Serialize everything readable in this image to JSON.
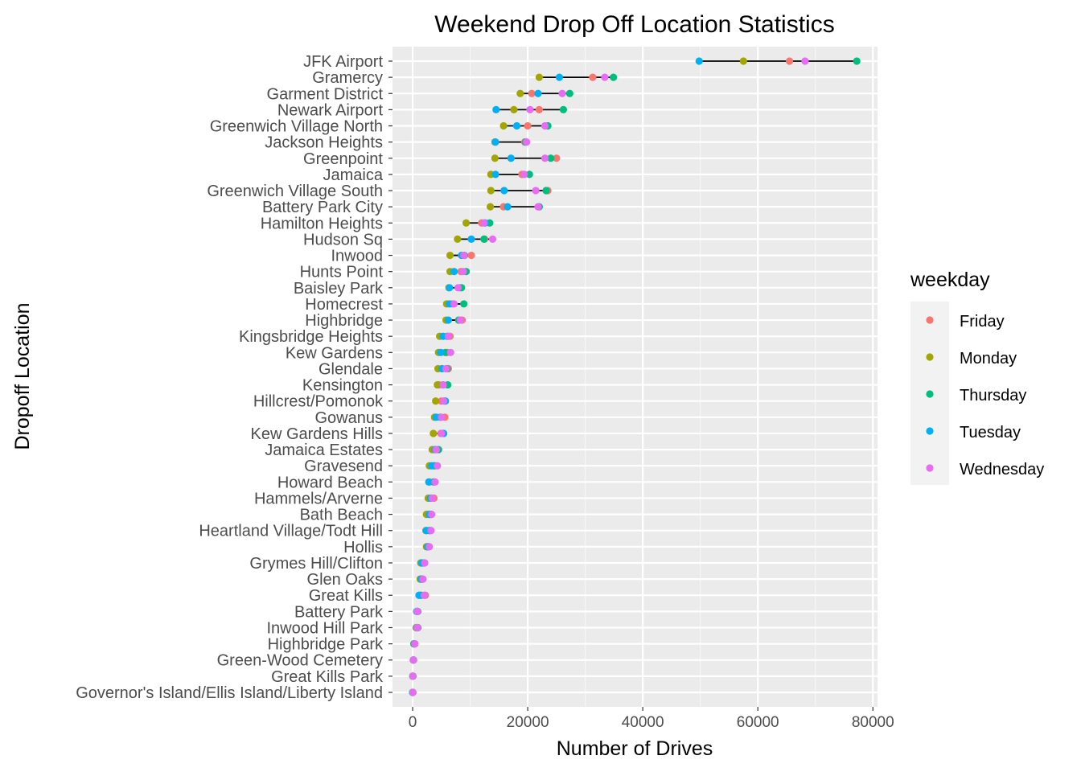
{
  "chart_data": {
    "type": "scatter",
    "title": "Weekend Drop Off Location Statistics",
    "xlabel": "Number of Drives",
    "ylabel": "Dropoff Location",
    "xlim": [
      -3500,
      80800
    ],
    "xticks": [
      0,
      20000,
      40000,
      60000,
      80000
    ],
    "xtick_labels": [
      "0",
      "20000",
      "40000",
      "60000",
      "80000"
    ],
    "grid": true,
    "legend": {
      "title": "weekday",
      "position": "right"
    },
    "categories": [
      "JFK Airport",
      "Gramercy",
      "Garment District",
      "Newark Airport",
      "Greenwich Village North",
      "Jackson Heights",
      "Greenpoint",
      "Jamaica",
      "Greenwich Village South",
      "Battery Park City",
      "Hamilton Heights",
      "Hudson Sq",
      "Inwood",
      "Hunts Point",
      "Baisley Park",
      "Homecrest",
      "Highbridge",
      "Kingsbridge Heights",
      "Kew Gardens",
      "Glendale",
      "Kensington",
      "Hillcrest/Pomonok",
      "Gowanus",
      "Kew Gardens Hills",
      "Jamaica Estates",
      "Gravesend",
      "Howard Beach",
      "Hammels/Arverne",
      "Bath Beach",
      "Heartland Village/Todt Hill",
      "Hollis",
      "Grymes Hill/Clifton",
      "Glen Oaks",
      "Great Kills",
      "Battery Park",
      "Inwood Hill Park",
      "Highbridge Park",
      "Green-Wood Cemetery",
      "Great Kills Park",
      "Governor's Island/Ellis Island/Liberty Island"
    ],
    "series": [
      {
        "name": "Friday",
        "color": "#F8766D",
        "values": [
          65500,
          31300,
          20700,
          22000,
          20000,
          19500,
          25000,
          19000,
          23500,
          15800,
          12000,
          12500,
          10200,
          8400,
          8200,
          6900,
          8600,
          6500,
          6000,
          6200,
          4600,
          5000,
          5600,
          4900,
          3900,
          3900,
          3600,
          3700,
          3200,
          3100,
          2800,
          1800,
          1600,
          2200,
          900,
          700,
          350,
          150,
          20,
          10
        ]
      },
      {
        "name": "Monday",
        "color": "#A3A500",
        "values": [
          57500,
          22000,
          18700,
          17600,
          15800,
          14300,
          14300,
          13600,
          13600,
          13500,
          9300,
          7800,
          6500,
          6500,
          6300,
          5900,
          5800,
          4700,
          4500,
          4400,
          4300,
          4000,
          3800,
          3600,
          3400,
          2900,
          2900,
          2700,
          2400,
          2300,
          2400,
          1400,
          1300,
          1200,
          800,
          600,
          200,
          150,
          20,
          10
        ]
      },
      {
        "name": "Thursday",
        "color": "#00BF7D",
        "values": [
          77200,
          34900,
          27300,
          26200,
          23500,
          19600,
          24000,
          20300,
          23200,
          22000,
          13400,
          12400,
          9000,
          9300,
          8500,
          8900,
          8000,
          6000,
          5700,
          6000,
          6100,
          5600,
          4800,
          5200,
          4500,
          3700,
          3700,
          3300,
          3000,
          2900,
          2700,
          2000,
          1700,
          1500,
          850,
          900,
          300,
          130,
          20,
          10
        ]
      },
      {
        "name": "Tuesday",
        "color": "#00B0F6",
        "values": [
          49800,
          25500,
          21800,
          14500,
          18100,
          14400,
          17100,
          14400,
          15900,
          16500,
          12600,
          10200,
          8500,
          7200,
          6400,
          6400,
          6200,
          5300,
          4900,
          5100,
          5300,
          5700,
          4100,
          5400,
          3900,
          3300,
          2800,
          3100,
          2900,
          2400,
          2600,
          1600,
          1500,
          1100,
          700,
          750,
          260,
          120,
          60,
          10
        ]
      },
      {
        "name": "Wednesday",
        "color": "#E76BF3",
        "values": [
          68200,
          33400,
          26000,
          20400,
          23000,
          19800,
          23000,
          19400,
          21400,
          21800,
          12400,
          13900,
          8900,
          8800,
          7900,
          7200,
          8300,
          6200,
          6600,
          5800,
          5300,
          5400,
          5000,
          5000,
          4100,
          4300,
          3900,
          3400,
          3300,
          3200,
          2900,
          2100,
          1800,
          2000,
          800,
          800,
          400,
          140,
          30,
          50
        ]
      }
    ]
  }
}
